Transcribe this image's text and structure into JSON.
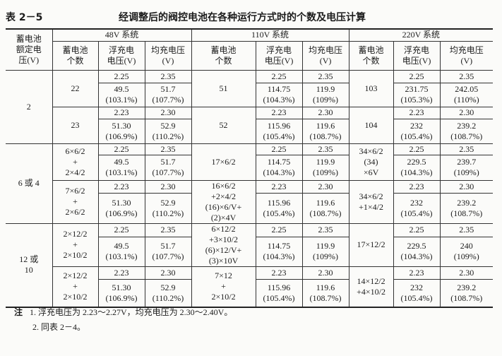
{
  "table_label": "表 2－5",
  "title": "经调整后的阀控电池在各种运行方式时的个数及电压计算",
  "header": {
    "rated": "蓄电池\n额定电\n压(V)",
    "systems": [
      "48V 系统",
      "110V 系统",
      "220V 系统"
    ],
    "count": "蓄电池\n个数",
    "float": "浮充电\n电压(V)",
    "equalize": "均充电压\n(V)"
  },
  "groups": [
    {
      "rated": "2",
      "subs": [
        {
          "cells": [
            {
              "count": "22",
              "fc": "2.25",
              "ec": "2.35",
              "ft": "49.5",
              "fp": "(103.1%)",
              "et": "51.7",
              "ep": "(107.7%)"
            },
            {
              "count": "51",
              "fc": "2.25",
              "ec": "2.35",
              "ft": "114.75",
              "fp": "(104.3%)",
              "et": "119.9",
              "ep": "(109%)"
            },
            {
              "count": "103",
              "fc": "2.25",
              "ec": "2.35",
              "ft": "231.75",
              "fp": "(105.3%)",
              "et": "242.05",
              "ep": "(110%)"
            }
          ]
        },
        {
          "cells": [
            {
              "count": "23",
              "fc": "2.23",
              "ec": "2.30",
              "ft": "51.30",
              "fp": "(106.9%)",
              "et": "52.9",
              "ep": "(110.2%)"
            },
            {
              "count": "52",
              "fc": "2.23",
              "ec": "2.30",
              "ft": "115.96",
              "fp": "(105.4%)",
              "et": "119.6",
              "ep": "(108.7%)"
            },
            {
              "count": "104",
              "fc": "2.23",
              "ec": "2.30",
              "ft": "232",
              "fp": "(105.4%)",
              "et": "239.2",
              "ep": "(108.7%)"
            }
          ]
        }
      ]
    },
    {
      "rated": "6 或 4",
      "subs": [
        {
          "cells": [
            {
              "count": "6×6/2\n+\n2×4/2",
              "fc": "2.25",
              "ec": "2.35",
              "ft": "49.5",
              "fp": "(103.1%)",
              "et": "51.7",
              "ep": "(107.7%)"
            },
            {
              "count": "17×6/2",
              "fc": "2.25",
              "ec": "2.35",
              "ft": "114.75",
              "fp": "(104.3%)",
              "et": "119.9",
              "ep": "(109%)"
            },
            {
              "count": "34×6/2\n(34)\n×6V",
              "fc": "2.25",
              "ec": "2.35",
              "ft": "229.5",
              "fp": "(104.3%)",
              "et": "239.7",
              "ep": "(109%)"
            }
          ]
        },
        {
          "cells": [
            {
              "count": "7×6/2\n+\n2×6/2",
              "fc": "2.23",
              "ec": "2.30",
              "ft": "51.30",
              "fp": "(106.9%)",
              "et": "52.9",
              "ep": "(110.2%)"
            },
            {
              "count": "16×6/2\n+2×4/2\n(16)×6/V+\n(2)×4V",
              "fc": "2.23",
              "ec": "2.30",
              "ft": "115.96",
              "fp": "(105.4%)",
              "et": "119.6",
              "ep": "(108.7%)"
            },
            {
              "count": "34×6/2\n+1×4/2",
              "fc": "2.23",
              "ec": "2.30",
              "ft": "232",
              "fp": "(105.4%)",
              "et": "239.2",
              "ep": "(108.7%)"
            }
          ]
        }
      ]
    },
    {
      "rated": "12 或\n10",
      "subs": [
        {
          "cells": [
            {
              "count": "2×12/2\n+\n2×10/2",
              "fc": "2.25",
              "ec": "2.35",
              "ft": "49.5",
              "fp": "(103.1%)",
              "et": "51.7",
              "ep": "(107.7%)"
            },
            {
              "count": "6×12/2\n+3×10/2\n(6)×12/V+\n(3)×10V",
              "fc": "2.25",
              "ec": "2.35",
              "ft": "114.75",
              "fp": "(104.3%)",
              "et": "119.9",
              "ep": "(109%)"
            },
            {
              "count": "17×12/2",
              "fc": "2.25",
              "ec": "2.35",
              "ft": "229.5",
              "fp": "(104.3%)",
              "et": "240",
              "ep": "(109%)"
            }
          ]
        },
        {
          "cells": [
            {
              "count": "2×12/2\n+\n2×10/2",
              "fc": "2.23",
              "ec": "2.30",
              "ft": "51.30",
              "fp": "(106.9%)",
              "et": "52.9",
              "ep": "(110.2%)"
            },
            {
              "count": "7×12\n+\n2×10/2",
              "fc": "2.23",
              "ec": "2.30",
              "ft": "115.96",
              "fp": "(105.4%)",
              "et": "119.6",
              "ep": "(108.7%)"
            },
            {
              "count": "14×12/2\n+4×10/2",
              "fc": "2.23",
              "ec": "2.30",
              "ft": "232",
              "fp": "(105.4%)",
              "et": "239.2",
              "ep": "(108.7%)"
            }
          ]
        }
      ]
    }
  ],
  "notes": {
    "label": "注",
    "items": [
      "1. 浮充电压为 2.23～2.27V，均充电压为 2.30～2.40V。",
      "2. 同表 2－4。"
    ]
  }
}
